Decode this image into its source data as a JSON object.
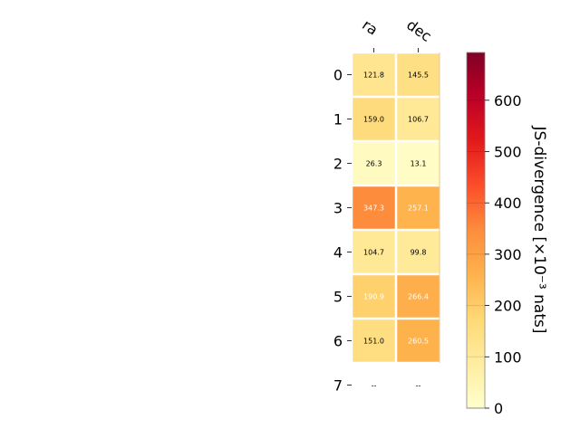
{
  "chart_data": {
    "type": "heatmap",
    "columns": [
      "ra",
      "dec"
    ],
    "rows": [
      "0",
      "1",
      "2",
      "3",
      "4",
      "5",
      "6",
      "7"
    ],
    "values": [
      [
        121.8,
        145.5
      ],
      [
        159.0,
        106.7
      ],
      [
        26.3,
        13.1
      ],
      [
        347.3,
        257.1
      ],
      [
        104.7,
        99.8
      ],
      [
        190.9,
        266.4
      ],
      [
        151.0,
        260.5
      ],
      [
        null,
        null
      ]
    ],
    "cell_labels": [
      [
        "121.8",
        "145.5"
      ],
      [
        "159.0",
        "106.7"
      ],
      [
        "26.3",
        "13.1"
      ],
      [
        "347.3",
        "257.1"
      ],
      [
        "104.7",
        "99.8"
      ],
      [
        "190.9",
        "266.4"
      ],
      [
        "151.0",
        "260.5"
      ],
      [
        "--",
        "--"
      ]
    ],
    "colorbar": {
      "label": "JS-divergence [×10⁻³ nats]",
      "range": [
        0,
        693.1
      ],
      "ticks": [
        0,
        100,
        200,
        300,
        400,
        500,
        600
      ],
      "colormap": "YlOrRd"
    }
  }
}
